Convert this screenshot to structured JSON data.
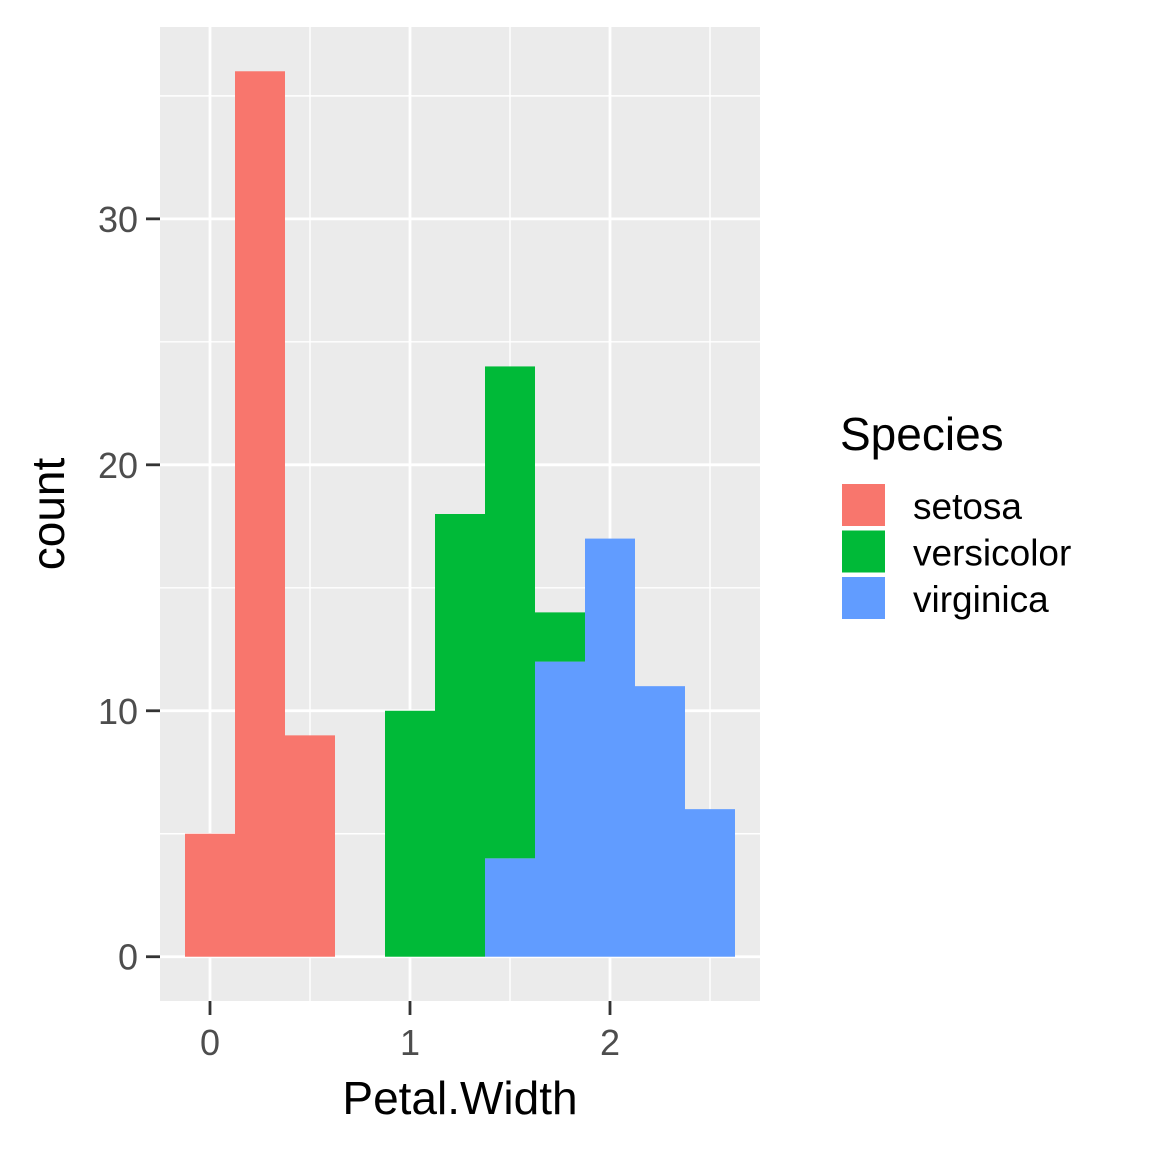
{
  "chart_data": {
    "type": "bar",
    "subtype": "stacked-histogram",
    "title": "",
    "xlabel": "Petal.Width",
    "ylabel": "count",
    "xlim": [
      -0.25,
      2.75
    ],
    "ylim": [
      -1.8,
      37.8
    ],
    "bin_width": 0.25,
    "x_ticks": [
      0,
      1,
      2
    ],
    "y_ticks": [
      0,
      10,
      20,
      30
    ],
    "grid": true,
    "legend": {
      "title": "Species",
      "position": "right"
    },
    "series": [
      {
        "name": "setosa",
        "color": "#F8766D",
        "bins": [
          {
            "x0": -0.125,
            "x1": 0.125,
            "count": 5
          },
          {
            "x0": 0.125,
            "x1": 0.375,
            "count": 36
          },
          {
            "x0": 0.375,
            "x1": 0.625,
            "count": 9
          }
        ]
      },
      {
        "name": "versicolor",
        "color": "#00BA38",
        "bins": [
          {
            "x0": 0.875,
            "x1": 1.125,
            "count": 10
          },
          {
            "x0": 1.125,
            "x1": 1.375,
            "count": 18
          },
          {
            "x0": 1.375,
            "x1": 1.625,
            "count": 20
          },
          {
            "x0": 1.625,
            "x1": 1.875,
            "count": 2
          }
        ]
      },
      {
        "name": "virginica",
        "color": "#619CFF",
        "bins": [
          {
            "x0": 1.375,
            "x1": 1.625,
            "count": 4
          },
          {
            "x0": 1.625,
            "x1": 1.875,
            "count": 12
          },
          {
            "x0": 1.875,
            "x1": 2.125,
            "count": 17
          },
          {
            "x0": 2.125,
            "x1": 2.375,
            "count": 11
          },
          {
            "x0": 2.375,
            "x1": 2.625,
            "count": 6
          }
        ]
      }
    ]
  }
}
